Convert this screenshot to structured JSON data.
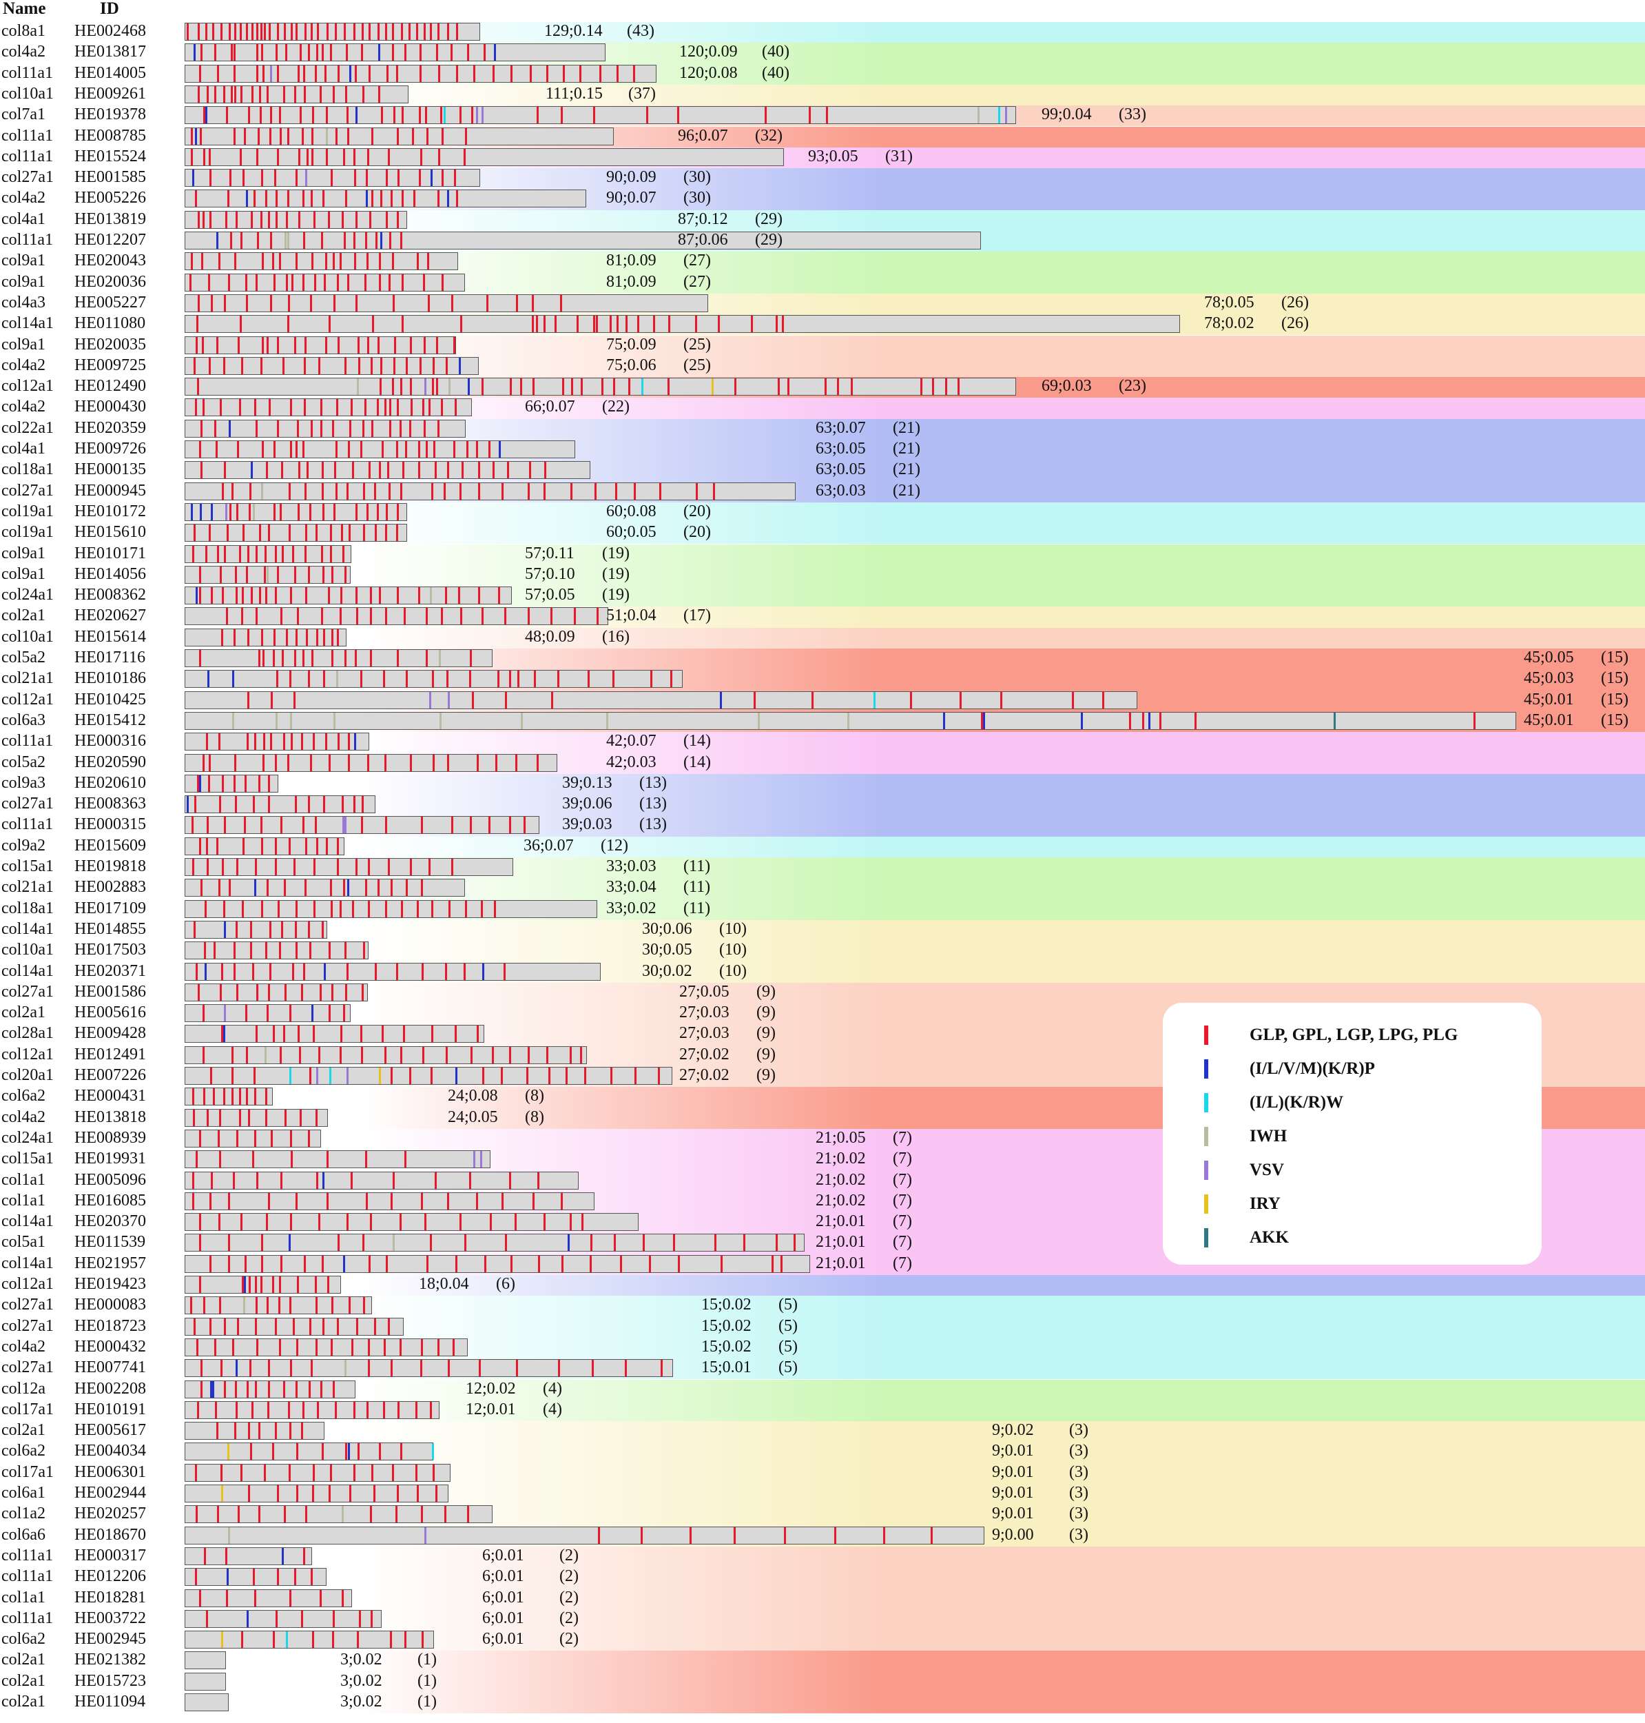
{
  "header": {
    "name": "Name",
    "id": "ID"
  },
  "motif_colors": {
    "r": "#e8192b",
    "b": "#2233cc",
    "c": "#19d8e8",
    "w": "#b8bda2",
    "v": "#9a78d6",
    "y": "#e8c21a",
    "t": "#2f7a82"
  },
  "legend": [
    {
      "label": "GLP, GPL, LGP, LPG, PLG",
      "color": "#e8192b"
    },
    {
      "label": "(I/L/V/M)(K/R)P",
      "color": "#2233cc"
    },
    {
      "label": "(I/L)(K/R)W",
      "color": "#19d8e8"
    },
    {
      "label": "IWH",
      "color": "#b8bda2"
    },
    {
      "label": "VSV",
      "color": "#9a78d6"
    },
    {
      "label": "IRY",
      "color": "#e8c21a"
    },
    {
      "label": "AKK",
      "color": "#2f7a82"
    }
  ],
  "rows": [
    {
      "name": "col8a1",
      "id": "HE002468",
      "stat": "129;0.14",
      "count": "(43)"
    },
    {
      "name": "col4a2",
      "id": "HE013817",
      "stat": "120;0.09",
      "count": "(40)"
    },
    {
      "name": "col11a1",
      "id": "HE014005",
      "stat": "120;0.08",
      "count": "(40)"
    },
    {
      "name": "col10a1",
      "id": "HE009261",
      "stat": "111;0.15",
      "count": "(37)"
    },
    {
      "name": "col7a1",
      "id": "HE019378",
      "stat": "99;0.04",
      "count": "(33)"
    },
    {
      "name": "col11a1",
      "id": "HE008785",
      "stat": "96;0.07",
      "count": "(32)"
    },
    {
      "name": "col11a1",
      "id": "HE015524",
      "stat": "93;0.05",
      "count": "(31)"
    },
    {
      "name": "col27a1",
      "id": "HE001585",
      "stat": "90;0.09",
      "count": "(30)"
    },
    {
      "name": "col4a2",
      "id": "HE005226",
      "stat": "90;0.07",
      "count": "(30)"
    },
    {
      "name": "col4a1",
      "id": "HE013819",
      "stat": "87;0.12",
      "count": "(29)"
    },
    {
      "name": "col11a1",
      "id": "HE012207",
      "stat": "87;0.06",
      "count": "(29)"
    },
    {
      "name": "col9a1",
      "id": "HE020043",
      "stat": "81;0.09",
      "count": "(27)"
    },
    {
      "name": "col9a1",
      "id": "HE020036",
      "stat": "81;0.09",
      "count": "(27)"
    },
    {
      "name": "col4a3",
      "id": "HE005227",
      "stat": "78;0.05",
      "count": "(26)"
    },
    {
      "name": "col14a1",
      "id": "HE011080",
      "stat": "78;0.02",
      "count": "(26)"
    },
    {
      "name": "col9a1",
      "id": "HE020035",
      "stat": "75;0.09",
      "count": "(25)"
    },
    {
      "name": "col4a2",
      "id": "HE009725",
      "stat": "75;0.06",
      "count": "(25)"
    },
    {
      "name": "col12a1",
      "id": "HE012490",
      "stat": "69;0.03",
      "count": "(23)"
    },
    {
      "name": "col4a2",
      "id": "HE000430",
      "stat": "66;0.07",
      "count": "(22)"
    },
    {
      "name": "col22a1",
      "id": "HE020359",
      "stat": "63;0.07",
      "count": "(21)"
    },
    {
      "name": "col4a1",
      "id": "HE009726",
      "stat": "63;0.05",
      "count": "(21)"
    },
    {
      "name": "col18a1",
      "id": "HE000135",
      "stat": "63;0.05",
      "count": "(21)"
    },
    {
      "name": "col27a1",
      "id": "HE000945",
      "stat": "63;0.03",
      "count": "(21)"
    },
    {
      "name": "col19a1",
      "id": "HE010172",
      "stat": "60;0.08",
      "count": "(20)"
    },
    {
      "name": "col19a1",
      "id": "HE015610",
      "stat": "60;0.05",
      "count": "(20)"
    },
    {
      "name": "col9a1",
      "id": "HE010171",
      "stat": "57;0.11",
      "count": "(19)"
    },
    {
      "name": "col9a1",
      "id": "HE014056",
      "stat": "57;0.10",
      "count": "(19)"
    },
    {
      "name": "col24a1",
      "id": "HE008362",
      "stat": "57;0.05",
      "count": "(19)"
    },
    {
      "name": "col2a1",
      "id": "HE020627",
      "stat": "51;0.04",
      "count": "(17)"
    },
    {
      "name": "col10a1",
      "id": "HE015614",
      "stat": "48;0.09",
      "count": "(16)"
    },
    {
      "name": "col5a2",
      "id": "HE017116",
      "stat": "45;0.05",
      "count": "(15)"
    },
    {
      "name": "col21a1",
      "id": "HE010186",
      "stat": "45;0.03",
      "count": "(15)"
    },
    {
      "name": "col12a1",
      "id": "HE010425",
      "stat": "45;0.01",
      "count": "(15)"
    },
    {
      "name": "col6a3",
      "id": "HE015412",
      "stat": "45;0.01",
      "count": "(15)"
    },
    {
      "name": "col11a1",
      "id": "HE000316",
      "stat": "42;0.07",
      "count": "(14)"
    },
    {
      "name": "col5a2",
      "id": "HE020590",
      "stat": "42;0.03",
      "count": "(14)"
    },
    {
      "name": "col9a3",
      "id": "HE020610",
      "stat": "39;0.13",
      "count": "(13)"
    },
    {
      "name": "col27a1",
      "id": "HE008363",
      "stat": "39;0.06",
      "count": "(13)"
    },
    {
      "name": "col11a1",
      "id": "HE000315",
      "stat": "39;0.03",
      "count": "(13)"
    },
    {
      "name": "col9a2",
      "id": "HE015609",
      "stat": "36;0.07",
      "count": "(12)"
    },
    {
      "name": "col15a1",
      "id": "HE019818",
      "stat": "33;0.03",
      "count": "(11)"
    },
    {
      "name": "col21a1",
      "id": "HE002883",
      "stat": "33;0.04",
      "count": "(11)"
    },
    {
      "name": "col18a1",
      "id": "HE017109",
      "stat": "33;0.02",
      "count": "(11)"
    },
    {
      "name": "col14a1",
      "id": "HE014855",
      "stat": "30;0.06",
      "count": "(10)"
    },
    {
      "name": "col10a1",
      "id": "HE017503",
      "stat": "30;0.05",
      "count": "(10)"
    },
    {
      "name": "col14a1",
      "id": "HE020371",
      "stat": "30;0.02",
      "count": "(10)"
    },
    {
      "name": "col27a1",
      "id": "HE001586",
      "stat": "27;0.05",
      "count": "(9)"
    },
    {
      "name": "col2a1",
      "id": "HE005616",
      "stat": "27;0.03",
      "count": "(9)"
    },
    {
      "name": "col28a1",
      "id": "HE009428",
      "stat": "27;0.03",
      "count": "(9)"
    },
    {
      "name": "col12a1",
      "id": "HE012491",
      "stat": "27;0.02",
      "count": "(9)"
    },
    {
      "name": "col20a1",
      "id": "HE007226",
      "stat": "27;0.02",
      "count": "(9)"
    },
    {
      "name": "col6a2",
      "id": "HE000431",
      "stat": "24;0.08",
      "count": "(8)"
    },
    {
      "name": "col4a2",
      "id": "HE013818",
      "stat": "24;0.05",
      "count": "(8)"
    },
    {
      "name": "col24a1",
      "id": "HE008939",
      "stat": "21;0.05",
      "count": "(7)"
    },
    {
      "name": "col15a1",
      "id": "HE019931",
      "stat": "21;0.02",
      "count": "(7)"
    },
    {
      "name": "col1a1",
      "id": "HE005096",
      "stat": "21;0.02",
      "count": "(7)"
    },
    {
      "name": "col1a1",
      "id": "HE016085",
      "stat": "21;0.02",
      "count": "(7)"
    },
    {
      "name": "col14a1",
      "id": "HE020370",
      "stat": "21;0.01",
      "count": "(7)"
    },
    {
      "name": "col5a1",
      "id": "HE011539",
      "stat": "21;0.01",
      "count": "(7)"
    },
    {
      "name": "col14a1",
      "id": "HE021957",
      "stat": "21;0.01",
      "count": "(7)"
    },
    {
      "name": "col12a1",
      "id": "HE019423",
      "stat": "18;0.04",
      "count": "(6)"
    },
    {
      "name": "col27a1",
      "id": "HE000083",
      "stat": "15;0.02",
      "count": "(5)"
    },
    {
      "name": "col27a1",
      "id": "HE018723",
      "stat": "15;0.02",
      "count": "(5)"
    },
    {
      "name": "col4a2",
      "id": "HE000432",
      "stat": "15;0.02",
      "count": "(5)"
    },
    {
      "name": "col27a1",
      "id": "HE007741",
      "stat": "15;0.01",
      "count": "(5)"
    },
    {
      "name": "col12a",
      "id": "HE002208",
      "stat": "12;0.02",
      "count": "(4)"
    },
    {
      "name": "col17a1",
      "id": "HE010191",
      "stat": "12;0.01",
      "count": "(4)"
    },
    {
      "name": "col2a1",
      "id": "HE005617",
      "stat": "9;0.02",
      "count": "(3)"
    },
    {
      "name": "col6a2",
      "id": "HE004034",
      "stat": "9;0.01",
      "count": "(3)"
    },
    {
      "name": "col17a1",
      "id": "HE006301",
      "stat": "9;0.01",
      "count": "(3)"
    },
    {
      "name": "col6a1",
      "id": "HE002944",
      "stat": "9;0.01",
      "count": "(3)"
    },
    {
      "name": "col1a2",
      "id": "HE020257",
      "stat": "9;0.01",
      "count": "(3)"
    },
    {
      "name": "col6a6",
      "id": "HE018670",
      "stat": "9;0.00",
      "count": "(3)"
    },
    {
      "name": "col11a1",
      "id": "HE000317",
      "stat": "6;0.01",
      "count": "(2)"
    },
    {
      "name": "col11a1",
      "id": "HE012206",
      "stat": "6;0.01",
      "count": "(2)"
    },
    {
      "name": "col1a1",
      "id": "HE018281",
      "stat": "6;0.01",
      "count": "(2)"
    },
    {
      "name": "col11a1",
      "id": "HE003722",
      "stat": "6;0.01",
      "count": "(2)"
    },
    {
      "name": "col6a2",
      "id": "HE002945",
      "stat": "6;0.01",
      "count": "(2)"
    },
    {
      "name": "col2a1",
      "id": "HE021382",
      "stat": "3;0.02",
      "count": "(1)"
    },
    {
      "name": "col2a1",
      "id": "HE015723",
      "stat": "3;0.02",
      "count": "(1)"
    },
    {
      "name": "col2a1",
      "id": "HE011094",
      "stat": "3;0.02",
      "count": "(1)"
    }
  ]
}
